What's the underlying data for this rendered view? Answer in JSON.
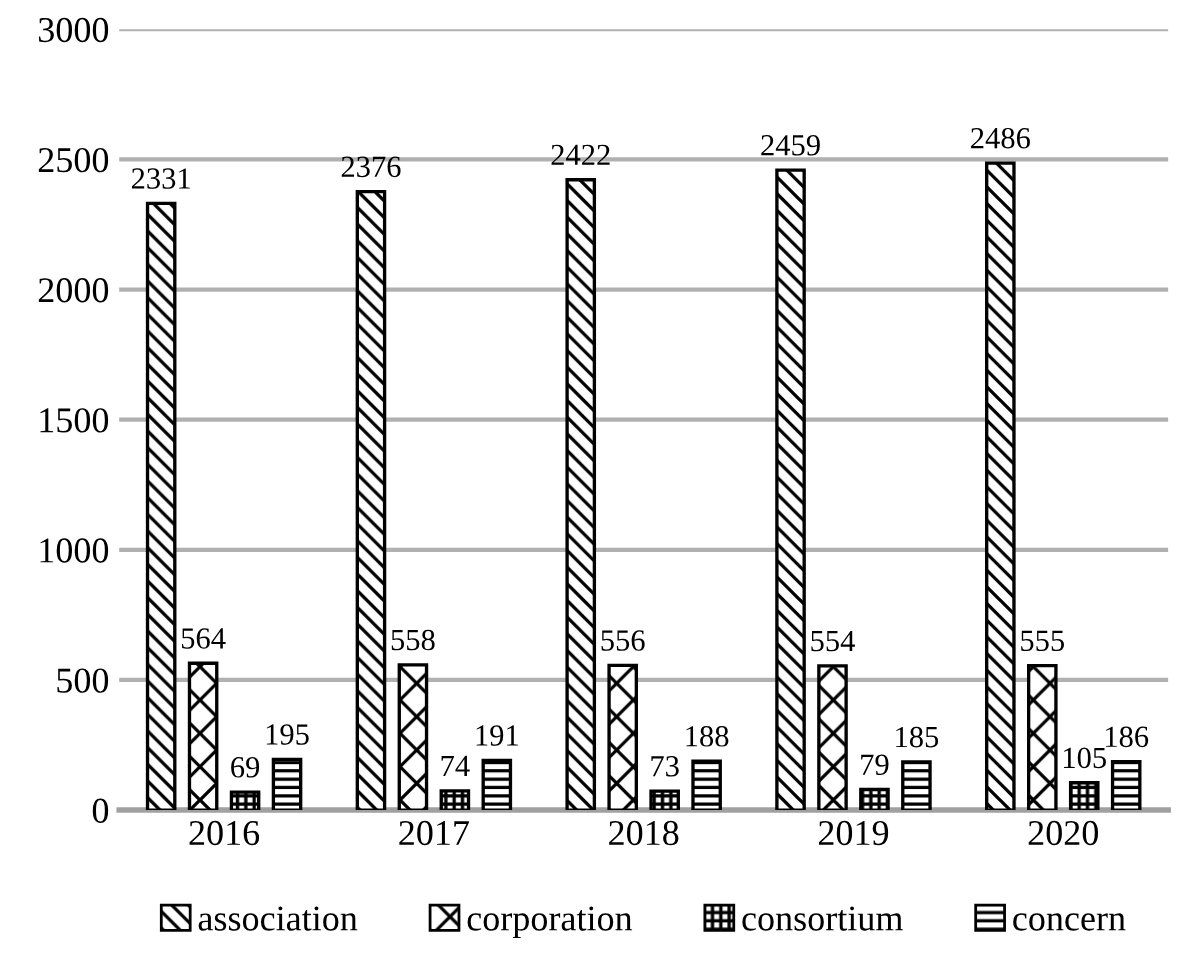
{
  "chart_data": {
    "type": "bar",
    "categories": [
      "2016",
      "2017",
      "2018",
      "2019",
      "2020"
    ],
    "series": [
      {
        "name": "association",
        "color": "#000000",
        "values": [
          2331,
          2376,
          2422,
          2459,
          2486
        ]
      },
      {
        "name": "corporation",
        "color": "#000000",
        "values": [
          564,
          558,
          556,
          554,
          555
        ]
      },
      {
        "name": "consortium",
        "color": "#000000",
        "values": [
          69,
          74,
          73,
          79,
          105
        ]
      },
      {
        "name": "concern",
        "color": "#000000",
        "values": [
          195,
          191,
          188,
          185,
          186
        ]
      }
    ],
    "ylim": [
      0,
      3000
    ],
    "yticks": [
      0,
      500,
      1000,
      1500,
      2000,
      2500,
      3000
    ],
    "grid": "y",
    "legend": "bottom",
    "data_labels": true
  }
}
